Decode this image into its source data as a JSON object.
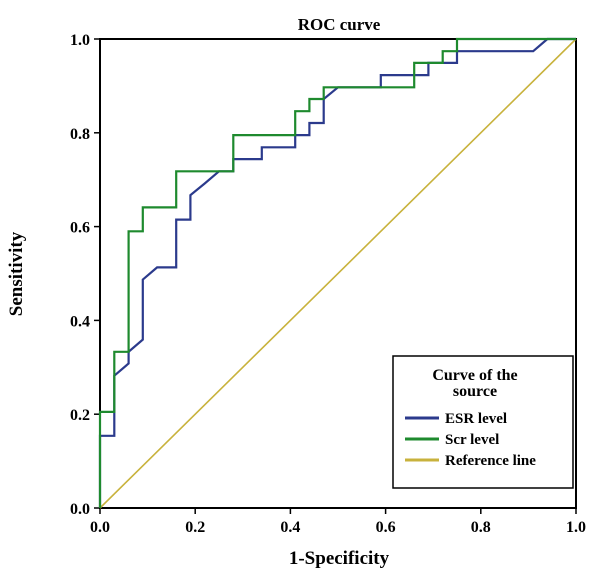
{
  "chart_data": {
    "type": "line",
    "title": "ROC curve",
    "xlabel": "1-Specificity",
    "ylabel": "Sensitivity",
    "xlim": [
      0,
      1
    ],
    "ylim": [
      0,
      1
    ],
    "xticks": [
      "0.0",
      "0.2",
      "0.4",
      "0.6",
      "0.8",
      "1.0"
    ],
    "yticks": [
      "0.0",
      "0.2",
      "0.4",
      "0.6",
      "0.8",
      "1.0"
    ],
    "grid": false,
    "legend": {
      "title_line1": "Curve of the",
      "title_line2": "source",
      "placement": "bottom-right"
    },
    "series": [
      {
        "name": "ESR level",
        "color": "#2b3a8c",
        "step": true,
        "x": [
          0,
          0,
          0.03,
          0.03,
          0.06,
          0.06,
          0.09,
          0.09,
          0.12,
          0.12,
          0.16,
          0.16,
          0.19,
          0.19,
          0.22,
          0.25,
          0.28,
          0.28,
          0.34,
          0.34,
          0.41,
          0.41,
          0.44,
          0.44,
          0.47,
          0.47,
          0.5,
          0.59,
          0.59,
          0.66,
          0.66,
          0.69,
          0.69,
          0.75,
          0.75,
          0.81,
          0.91,
          0.94,
          1.0
        ],
        "y": [
          0,
          0.154,
          0.154,
          0.282,
          0.308,
          0.333,
          0.359,
          0.487,
          0.513,
          0.513,
          0.513,
          0.615,
          0.615,
          0.667,
          0.692,
          0.718,
          0.718,
          0.744,
          0.744,
          0.769,
          0.769,
          0.795,
          0.795,
          0.821,
          0.821,
          0.872,
          0.897,
          0.897,
          0.923,
          0.923,
          0.923,
          0.923,
          0.949,
          0.949,
          0.974,
          0.974,
          0.974,
          1.0,
          1.0
        ]
      },
      {
        "name": "Scr level",
        "color": "#1e8a2e",
        "step": true,
        "x": [
          0,
          0,
          0.03,
          0.03,
          0.06,
          0.06,
          0.09,
          0.09,
          0.16,
          0.16,
          0.28,
          0.28,
          0.41,
          0.41,
          0.44,
          0.44,
          0.47,
          0.47,
          0.66,
          0.66,
          0.72,
          0.72,
          0.75,
          0.75,
          1.0
        ],
        "y": [
          0,
          0.205,
          0.205,
          0.333,
          0.333,
          0.59,
          0.59,
          0.641,
          0.641,
          0.718,
          0.718,
          0.795,
          0.795,
          0.846,
          0.846,
          0.872,
          0.872,
          0.897,
          0.897,
          0.949,
          0.949,
          0.974,
          0.974,
          1.0,
          1.0
        ]
      },
      {
        "name": "Reference line",
        "color": "#c8b23c",
        "step": false,
        "x": [
          0,
          1
        ],
        "y": [
          0,
          1
        ]
      }
    ]
  }
}
